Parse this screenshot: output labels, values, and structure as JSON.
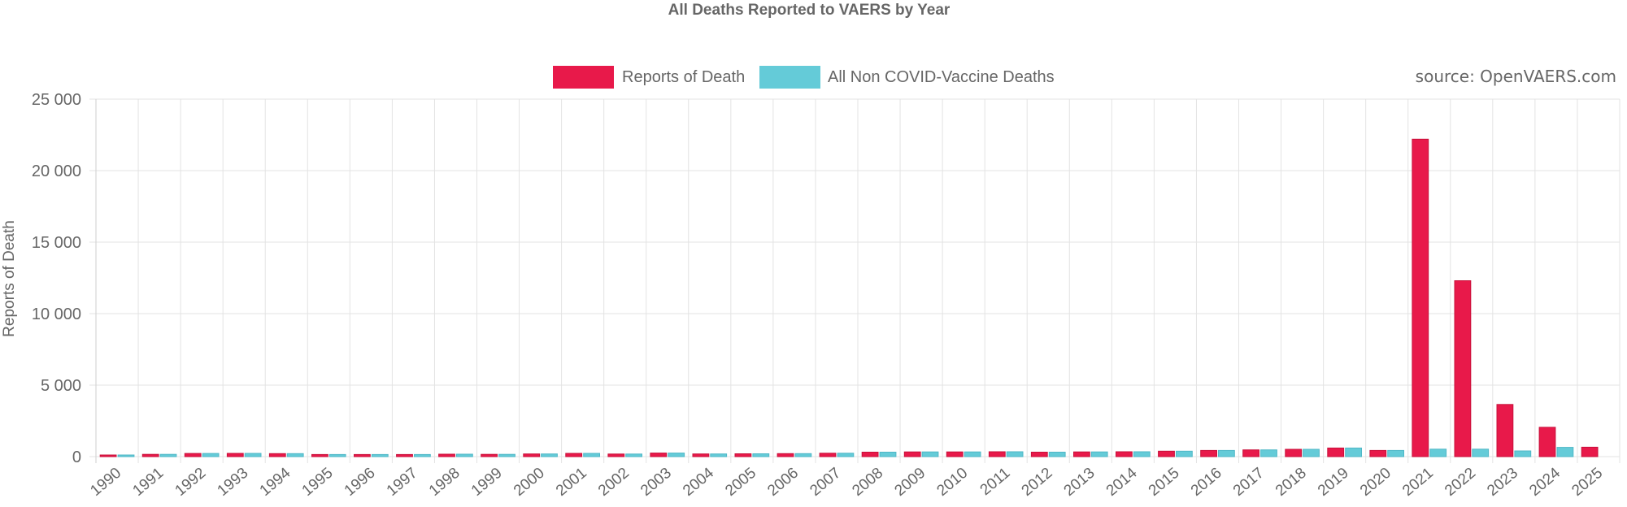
{
  "chart_data": {
    "type": "bar",
    "title": "All Deaths Reported to VAERS by Year",
    "source": "source: OpenVAERS.com",
    "ylabel": "Reports of Death",
    "xlabel": "",
    "ylim": [
      0,
      25000
    ],
    "yticks": [
      0,
      5000,
      10000,
      15000,
      20000,
      25000
    ],
    "ytick_labels": [
      "0",
      "5 000",
      "10 000",
      "15 000",
      "20 000",
      "25 000"
    ],
    "categories": [
      "1990",
      "1991",
      "1992",
      "1993",
      "1994",
      "1995",
      "1996",
      "1997",
      "1998",
      "1999",
      "2000",
      "2001",
      "2002",
      "2003",
      "2004",
      "2005",
      "2006",
      "2007",
      "2008",
      "2009",
      "2010",
      "2011",
      "2012",
      "2013",
      "2014",
      "2015",
      "2016",
      "2017",
      "2018",
      "2019",
      "2020",
      "2021",
      "2022",
      "2023",
      "2024",
      "2025"
    ],
    "legend_position": "top-center",
    "series": [
      {
        "name": "Reports of Death",
        "color": "#e8194a",
        "values": [
          60,
          160,
          220,
          230,
          210,
          150,
          150,
          150,
          170,
          160,
          190,
          230,
          180,
          250,
          190,
          200,
          210,
          240,
          310,
          330,
          330,
          340,
          310,
          330,
          340,
          380,
          430,
          470,
          510,
          600,
          430,
          22200,
          12300,
          3650,
          2050,
          660
        ]
      },
      {
        "name": "All Non COVID-Vaccine Deaths",
        "color": "#64cbd8",
        "values": [
          60,
          160,
          220,
          230,
          210,
          150,
          150,
          150,
          170,
          160,
          190,
          230,
          180,
          250,
          190,
          200,
          210,
          240,
          310,
          330,
          330,
          340,
          310,
          330,
          340,
          380,
          430,
          470,
          510,
          600,
          430,
          520,
          520,
          400,
          650,
          0
        ]
      }
    ]
  }
}
